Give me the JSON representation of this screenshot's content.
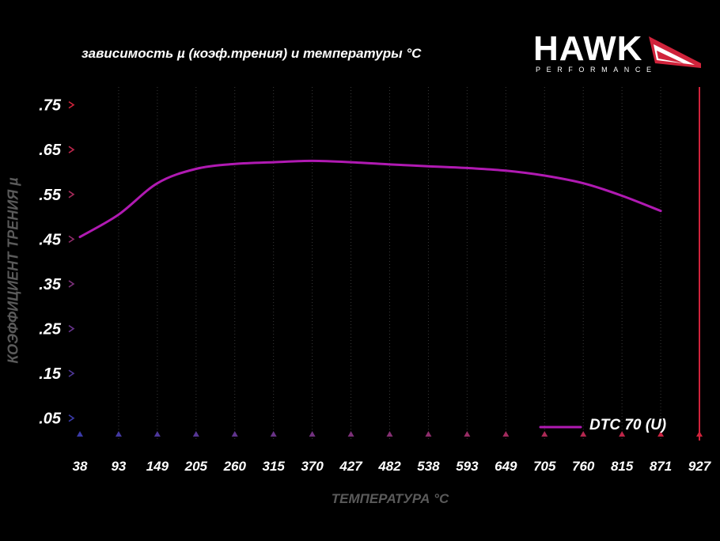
{
  "header": {
    "title": "зависимость µ (коэф.трения) и температуры °C"
  },
  "logo": {
    "word": "HAWK",
    "sub": "PERFORMANCE"
  },
  "colors": {
    "line": "#b01ab2",
    "axis_left_top": "#d0233b",
    "axis_bottom": "#3a3aa8",
    "grid": "#3a3a3a"
  },
  "chart_data": {
    "type": "line",
    "title": "зависимость µ (коэф.трения) и температуры °C",
    "xlabel": "ТЕМПЕРАТУРА °C",
    "ylabel": "КОЭФФИЦИЕНТ ТРЕНИЯ µ",
    "x_ticks": [
      "38",
      "93",
      "149",
      "205",
      "260",
      "315",
      "370",
      "427",
      "482",
      "538",
      "593",
      "649",
      "705",
      "760",
      "815",
      "871",
      "927"
    ],
    "y_ticks": [
      ".75",
      ".65",
      ".55",
      ".45",
      ".35",
      ".25",
      ".15",
      ".05"
    ],
    "xlim": [
      38,
      927
    ],
    "ylim": [
      0.0,
      0.79
    ],
    "grid": true,
    "legend": "bottom-right",
    "series": [
      {
        "name": "DTC 70 (U)",
        "x": [
          38,
          93,
          149,
          205,
          260,
          315,
          370,
          427,
          482,
          538,
          593,
          649,
          705,
          760,
          815,
          871
        ],
        "y": [
          0.455,
          0.505,
          0.575,
          0.607,
          0.618,
          0.622,
          0.625,
          0.622,
          0.617,
          0.613,
          0.609,
          0.603,
          0.592,
          0.575,
          0.547,
          0.513
        ]
      }
    ]
  }
}
